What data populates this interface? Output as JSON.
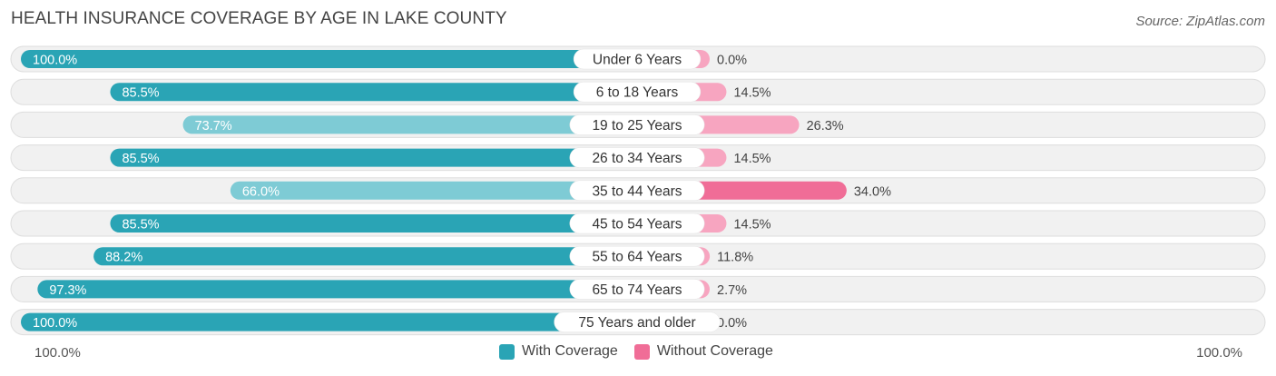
{
  "title": "HEALTH INSURANCE COVERAGE BY AGE IN LAKE COUNTY",
  "source": "Source: ZipAtlas.com",
  "axis": {
    "left_label": "100.0%",
    "right_label": "100.0%"
  },
  "legend": {
    "with": {
      "label": "With Coverage",
      "color": "#2aa4b5"
    },
    "without": {
      "label": "Without Coverage",
      "color": "#f06d97"
    }
  },
  "chart_data": {
    "type": "bar",
    "orientation": "horizontal-diverging",
    "title": "HEALTH INSURANCE COVERAGE BY AGE IN LAKE COUNTY",
    "xlim": [
      0,
      100
    ],
    "categories": [
      "Under 6 Years",
      "6 to 18 Years",
      "19 to 25 Years",
      "26 to 34 Years",
      "35 to 44 Years",
      "45 to 54 Years",
      "55 to 64 Years",
      "65 to 74 Years",
      "75 Years and older"
    ],
    "series": [
      {
        "name": "With Coverage",
        "values": [
          100.0,
          85.5,
          73.7,
          85.5,
          66.0,
          85.5,
          88.2,
          97.3,
          100.0
        ],
        "labels": [
          "100.0%",
          "85.5%",
          "73.7%",
          "85.5%",
          "66.0%",
          "85.5%",
          "88.2%",
          "97.3%",
          "100.0%"
        ]
      },
      {
        "name": "Without Coverage",
        "values": [
          0.0,
          14.5,
          26.3,
          14.5,
          34.0,
          14.5,
          11.8,
          2.7,
          0.0
        ],
        "labels": [
          "0.0%",
          "14.5%",
          "26.3%",
          "14.5%",
          "34.0%",
          "14.5%",
          "11.8%",
          "2.7%",
          "0.0%"
        ]
      }
    ]
  }
}
